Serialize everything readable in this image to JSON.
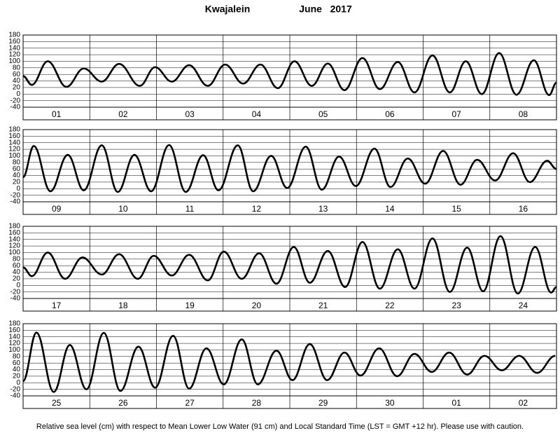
{
  "title": "Kwajalein",
  "subtitle": "June   2017",
  "footnote": "Relative sea level (cm) with respect to Mean Lower Low Water (91 cm) and Local Standard Time (LST = GMT +12 hr). Please use with caution.",
  "chart_data": [
    {
      "type": "line",
      "categories": [
        "01",
        "02",
        "03",
        "04",
        "05",
        "06",
        "07",
        "08"
      ],
      "color": "#000000",
      "grid": true,
      "xlim": [
        0,
        8
      ],
      "ylim": [
        -40,
        180
      ],
      "yticks": [
        -40,
        -20,
        0,
        20,
        40,
        60,
        80,
        100,
        120,
        140,
        160,
        180
      ],
      "x": [
        0,
        0.13,
        0.37,
        0.65,
        0.91,
        1.18,
        1.44,
        1.75,
        1.98,
        2.23,
        2.49,
        2.77,
        3.03,
        3.3,
        3.56,
        3.82,
        4.07,
        4.33,
        4.57,
        4.82,
        5.09,
        5.35,
        5.62,
        5.87,
        6.14,
        6.4,
        6.64,
        6.88,
        7.14,
        7.4,
        7.66,
        7.89,
        8
      ],
      "values": [
        55,
        28,
        100,
        22,
        78,
        38,
        92,
        25,
        82,
        38,
        88,
        25,
        90,
        32,
        90,
        18,
        100,
        25,
        93,
        12,
        110,
        15,
        98,
        5,
        118,
        5,
        100,
        0,
        125,
        -2,
        103,
        -3,
        35
      ]
    },
    {
      "type": "line",
      "categories": [
        "09",
        "10",
        "11",
        "12",
        "13",
        "14",
        "15",
        "16"
      ],
      "color": "#000000",
      "grid": true,
      "xlim": [
        0,
        8
      ],
      "ylim": [
        -40,
        180
      ],
      "yticks": [
        -40,
        -20,
        0,
        20,
        40,
        60,
        80,
        100,
        120,
        140,
        160,
        180
      ],
      "x": [
        0,
        0.16,
        0.41,
        0.67,
        0.91,
        1.18,
        1.42,
        1.67,
        1.92,
        2.19,
        2.44,
        2.7,
        2.93,
        3.22,
        3.45,
        3.72,
        3.96,
        4.24,
        4.48,
        4.74,
        4.99,
        5.27,
        5.51,
        5.77,
        6.03,
        6.3,
        6.56,
        6.81,
        7.08,
        7.35,
        7.6,
        7.86,
        8
      ],
      "values": [
        35,
        130,
        -8,
        103,
        -5,
        132,
        -10,
        103,
        -8,
        133,
        -10,
        102,
        -5,
        132,
        -8,
        100,
        2,
        128,
        -3,
        98,
        8,
        122,
        5,
        92,
        15,
        115,
        12,
        88,
        25,
        108,
        20,
        85,
        60
      ]
    },
    {
      "type": "line",
      "categories": [
        "17",
        "18",
        "19",
        "20",
        "21",
        "22",
        "23",
        "24"
      ],
      "color": "#000000",
      "grid": true,
      "xlim": [
        0,
        8
      ],
      "ylim": [
        -40,
        180
      ],
      "yticks": [
        -40,
        -20,
        0,
        20,
        40,
        60,
        80,
        100,
        120,
        140,
        160,
        180
      ],
      "x": [
        0,
        0.13,
        0.37,
        0.63,
        0.89,
        1.18,
        1.44,
        1.72,
        1.96,
        2.23,
        2.49,
        2.77,
        3.01,
        3.28,
        3.54,
        3.8,
        4.06,
        4.3,
        4.57,
        4.83,
        5.09,
        5.35,
        5.62,
        5.87,
        6.14,
        6.4,
        6.66,
        6.9,
        7.16,
        7.42,
        7.68,
        7.92,
        8
      ],
      "values": [
        55,
        28,
        100,
        20,
        85,
        33,
        95,
        20,
        90,
        30,
        93,
        15,
        103,
        20,
        98,
        5,
        117,
        8,
        105,
        -5,
        132,
        -10,
        110,
        -10,
        143,
        -20,
        115,
        -18,
        150,
        -25,
        117,
        -22,
        -5
      ]
    },
    {
      "type": "line",
      "categories": [
        "25",
        "26",
        "27",
        "28",
        "29",
        "30",
        "01",
        "02"
      ],
      "color": "#000000",
      "grid": true,
      "xlim": [
        0,
        8
      ],
      "ylim": [
        -40,
        180
      ],
      "yticks": [
        -40,
        -20,
        0,
        20,
        40,
        60,
        80,
        100,
        120,
        140,
        160,
        180
      ],
      "x": [
        0,
        0.2,
        0.46,
        0.7,
        0.95,
        1.21,
        1.46,
        1.73,
        1.98,
        2.25,
        2.49,
        2.75,
        3.01,
        3.28,
        3.52,
        3.8,
        4.04,
        4.3,
        4.56,
        4.82,
        5.06,
        5.34,
        5.61,
        5.87,
        6.13,
        6.39,
        6.66,
        6.92,
        7.18,
        7.44,
        7.71,
        7.98
      ],
      "values": [
        5,
        153,
        -28,
        115,
        -20,
        152,
        -25,
        110,
        -15,
        143,
        -18,
        105,
        -5,
        132,
        -5,
        98,
        8,
        118,
        8,
        92,
        22,
        105,
        20,
        88,
        33,
        92,
        25,
        82,
        38,
        82,
        30,
        82
      ]
    }
  ]
}
